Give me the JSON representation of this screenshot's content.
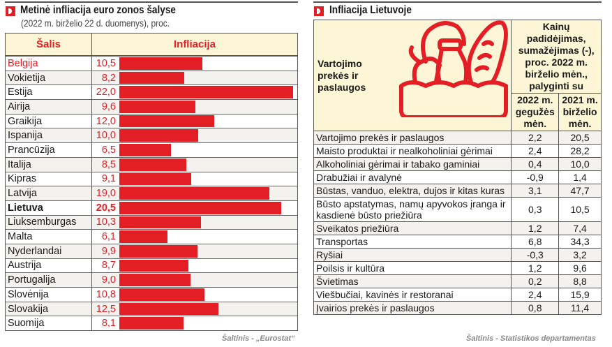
{
  "left": {
    "title": "Metinė infliacija euro zonos šalyse",
    "subtitle": "(2022 m. birželio 22 d. duomenys), proc.",
    "headers": {
      "country": "Šalis",
      "inflation": "Infliacija"
    },
    "source": "Šaltinis - „Eurostat“"
  },
  "right": {
    "title": "Infliacija Lietuvoje",
    "header_col1": "Vartojimo prekės ir paslaugos",
    "header_group": "Kainų padidėjimas, sumažėjimas (-), proc. 2022 m. birželio mėn., palyginti su",
    "header_sub1": "2022 m. gegužės mėn.",
    "header_sub2": "2021 m. birželio mėn.",
    "rows": [
      {
        "label": "Vartojimo prekės ir paslaugos",
        "may": "2,2",
        "year": "20,5"
      },
      {
        "label": "Maisto produktai ir nealkoholiniai gėrimai",
        "may": "2,4",
        "year": "28,2"
      },
      {
        "label": "Alkoholiniai gėrimai ir tabako gaminiai",
        "may": "0,4",
        "year": "10,0"
      },
      {
        "label": "Drabužiai ir avalynė",
        "may": "-0,9",
        "year": "1,4"
      },
      {
        "label": "Būstas, vanduo, elektra, dujos ir kitas kuras",
        "may": "3,1",
        "year": "47,7"
      },
      {
        "label": "Būsto apstatymas, namų apyvokos įranga ir kasdienė būsto priežiūra",
        "may": "0,3",
        "year": "10,5"
      },
      {
        "label": "Sveikatos priežiūra",
        "may": "1,2",
        "year": "7,4"
      },
      {
        "label": "Transportas",
        "may": "6,8",
        "year": "34,3"
      },
      {
        "label": "Ryšiai",
        "may": "-0,3",
        "year": "3,2"
      },
      {
        "label": "Poilsis ir kultūra",
        "may": "1,2",
        "year": "9,6"
      },
      {
        "label": "Švietimas",
        "may": "0,2",
        "year": "8,8"
      },
      {
        "label": "Viešbučiai, kavinės ir restoranai",
        "may": "2,4",
        "year": "15,9"
      },
      {
        "label": "Įvairios prekės ir paslaugos",
        "may": "0,8",
        "year": "11,4"
      }
    ],
    "source": "Šaltinis - Statistikos departamentas"
  },
  "colors": {
    "accent": "#e31e24",
    "header_bg": "#fdf6d6"
  },
  "chart_data": {
    "type": "bar",
    "title": "Metinė infliacija euro zonos šalyse",
    "subtitle": "(2022 m. birželio 22 d. duomenys), proc.",
    "categories": [
      "Belgija",
      "Vokietija",
      "Estija",
      "Airija",
      "Graikija",
      "Ispanija",
      "Prancūzija",
      "Italija",
      "Kipras",
      "Latvija",
      "Lietuva",
      "Liuksemburgas",
      "Malta",
      "Nyderlandai",
      "Austrija",
      "Portugalija",
      "Slovėnija",
      "Slovakija",
      "Suomija"
    ],
    "labels": [
      "10,5",
      "8,2",
      "22,0",
      "9,6",
      "12,0",
      "10,0",
      "6,5",
      "8,5",
      "9,1",
      "19,0",
      "20,5",
      "10,3",
      "6,1",
      "9,9",
      "8,7",
      "9,0",
      "10,8",
      "12,5",
      "8,1"
    ],
    "values": [
      10.5,
      8.2,
      22.0,
      9.6,
      12.0,
      10.0,
      6.5,
      8.5,
      9.1,
      19.0,
      20.5,
      10.3,
      6.1,
      9.9,
      8.7,
      9.0,
      10.8,
      12.5,
      8.1
    ],
    "xlim": [
      0,
      22
    ],
    "highlight": "Lietuva"
  }
}
